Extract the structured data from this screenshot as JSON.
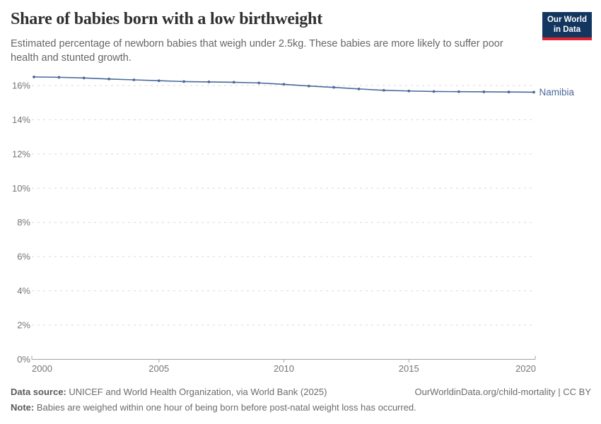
{
  "header": {
    "title": "Share of babies born with a low birthweight",
    "subtitle": "Estimated percentage of newborn babies that weigh under 2.5kg. These babies are more likely to suffer poor health and stunted growth."
  },
  "logo": {
    "line1": "Our World",
    "line2": "in Data",
    "bg_color": "#12365f",
    "bar_color": "#e0242e"
  },
  "chart_data": {
    "type": "line",
    "title": "Share of babies born with a low birthweight",
    "x": [
      2000,
      2001,
      2002,
      2003,
      2004,
      2005,
      2006,
      2007,
      2008,
      2009,
      2010,
      2011,
      2012,
      2013,
      2014,
      2015,
      2016,
      2017,
      2018,
      2019,
      2020
    ],
    "series": [
      {
        "name": "Namibia",
        "color": "#4b6a9b",
        "values": [
          16.5,
          16.48,
          16.44,
          16.38,
          16.33,
          16.28,
          16.23,
          16.21,
          16.19,
          16.15,
          16.07,
          15.97,
          15.89,
          15.8,
          15.72,
          15.68,
          15.65,
          15.64,
          15.63,
          15.62,
          15.61
        ]
      }
    ],
    "xlabel": "",
    "ylabel": "",
    "xlim": [
      2000,
      2020
    ],
    "ylim": [
      0,
      17
    ],
    "x_ticks": [
      2000,
      2005,
      2010,
      2015,
      2020
    ],
    "y_ticks": [
      0,
      2,
      4,
      6,
      8,
      10,
      12,
      14,
      16
    ],
    "y_tick_labels": [
      "0%",
      "2%",
      "4%",
      "6%",
      "8%",
      "10%",
      "12%",
      "14%",
      "16%"
    ],
    "grid": "horizontal-dashed",
    "legend": "line-end-label",
    "grid_color": "#d9d9d9",
    "axis_color": "#a3a3a3",
    "tick_label_color": "#757575"
  },
  "footer": {
    "datasource_label": "Data source:",
    "datasource_text": " UNICEF and World Health Organization, via World Bank (2025)",
    "right_text": "OurWorldinData.org/child-mortality | CC BY",
    "note_label": "Note:",
    "note_text": " Babies are weighed within one hour of being born before post-natal weight loss has occurred."
  }
}
